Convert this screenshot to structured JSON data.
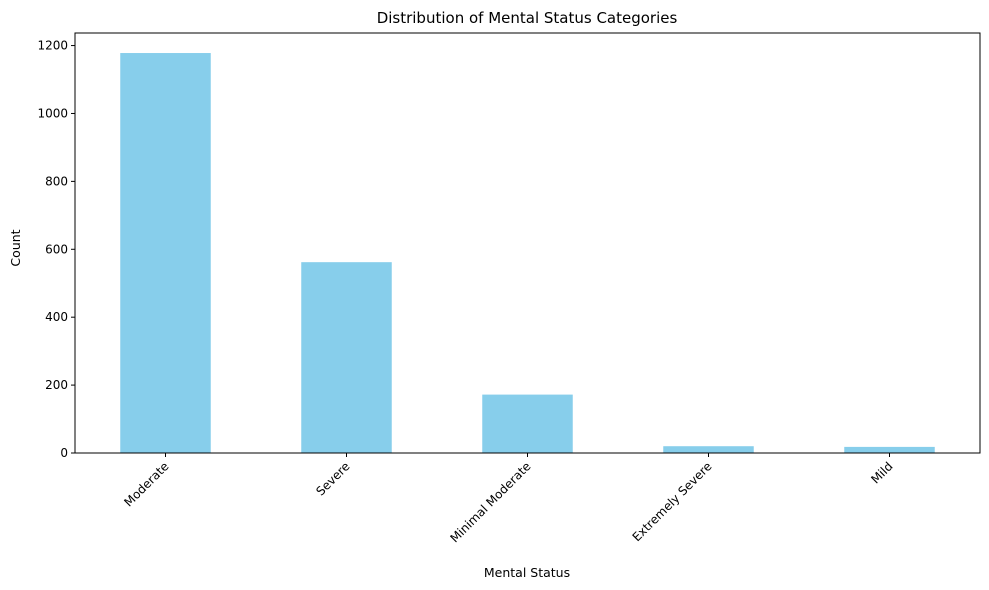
{
  "chart_data": {
    "type": "bar",
    "title": "Distribution of Mental Status Categories",
    "xlabel": "Mental Status",
    "ylabel": "Count",
    "categories": [
      "Moderate",
      "Severe",
      "Minimal Moderate",
      "Extremely Severe",
      "Mild"
    ],
    "values": [
      1178,
      562,
      172,
      20,
      18
    ],
    "ylim": [
      0,
      1237
    ],
    "yticks": [
      0,
      200,
      400,
      600,
      800,
      1000,
      1200
    ],
    "ytick_labels": [
      "0",
      "200",
      "400",
      "600",
      "800",
      "1000",
      "1200"
    ],
    "bar_color": "#87CEEB",
    "grid": false,
    "legend": "none"
  }
}
